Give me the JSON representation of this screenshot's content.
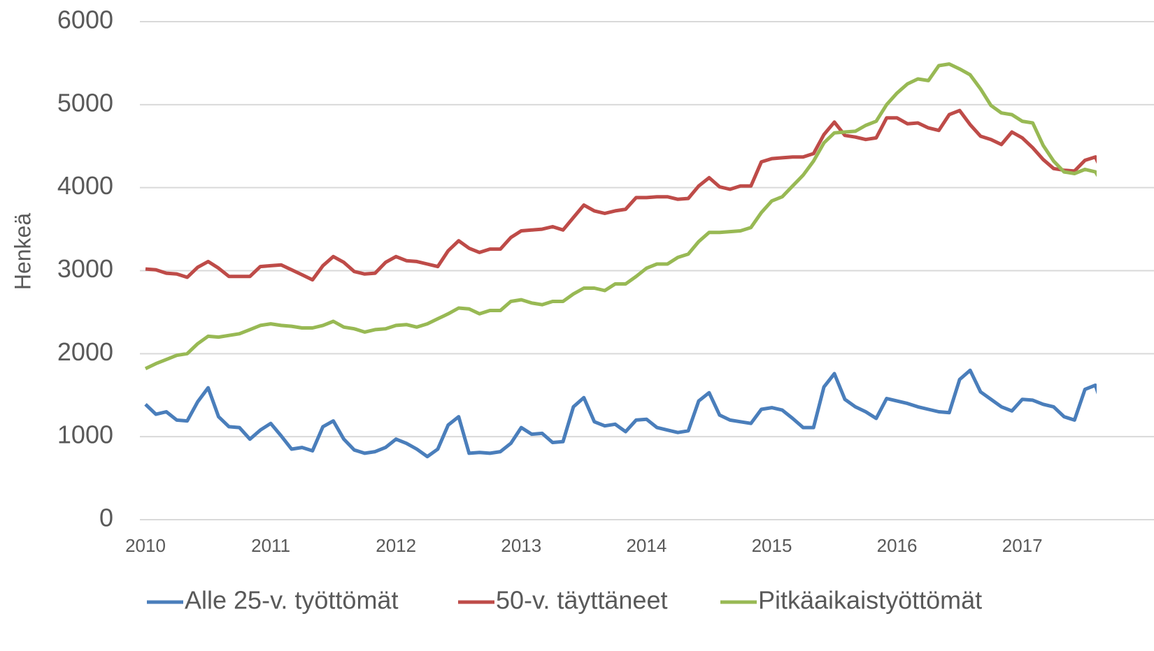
{
  "chart_data": {
    "type": "line",
    "y_label": "Henkeä",
    "categories": [
      "2010",
      null,
      null,
      null,
      null,
      null,
      null,
      null,
      null,
      null,
      null,
      null,
      "2011",
      null,
      null,
      null,
      null,
      null,
      null,
      null,
      null,
      null,
      null,
      null,
      "2012",
      null,
      null,
      null,
      null,
      null,
      null,
      null,
      null,
      null,
      null,
      null,
      "2013",
      null,
      null,
      null,
      null,
      null,
      null,
      null,
      null,
      null,
      null,
      null,
      "2014",
      null,
      null,
      null,
      null,
      null,
      null,
      null,
      null,
      null,
      null,
      null,
      "2015",
      null,
      null,
      null,
      null,
      null,
      null,
      null,
      null,
      null,
      null,
      null,
      "2016",
      null,
      null,
      null,
      null,
      null,
      null,
      null,
      null,
      null,
      null,
      null,
      "2017",
      null,
      null,
      null,
      null,
      null,
      null,
      null,
      null
    ],
    "series": [
      {
        "name": "Alle 25-v. työttömät",
        "color": "#4a7ebb",
        "values": [
          1390,
          1270,
          1300,
          1200,
          1190,
          1420,
          1590,
          1240,
          1120,
          1110,
          970,
          1080,
          1160,
          1010,
          850,
          870,
          830,
          1120,
          1190,
          970,
          840,
          800,
          820,
          870,
          970,
          920,
          850,
          760,
          850,
          1140,
          1240,
          800,
          810,
          800,
          820,
          920,
          1110,
          1030,
          1040,
          930,
          940,
          1360,
          1470,
          1180,
          1130,
          1150,
          1060,
          1200,
          1210,
          1110,
          1080,
          1050,
          1070,
          1430,
          1530,
          1260,
          1200,
          1180,
          1160,
          1330,
          1350,
          1320,
          1220,
          1110,
          1110,
          1600,
          1760,
          1450,
          1360,
          1300,
          1220,
          1460,
          1430,
          1400,
          1360,
          1330,
          1300,
          1290,
          1690,
          1800,
          1540,
          1450,
          1360,
          1310,
          1450,
          1440,
          1390,
          1360,
          1240,
          1200,
          1570,
          1620,
          1250
        ]
      },
      {
        "name": "50-v. täyttäneet",
        "color": "#be4b48",
        "values": [
          3020,
          3010,
          2970,
          2960,
          2920,
          3040,
          3110,
          3030,
          2930,
          2930,
          2930,
          3050,
          3060,
          3070,
          3010,
          2950,
          2890,
          3060,
          3170,
          3100,
          2990,
          2960,
          2970,
          3100,
          3170,
          3120,
          3110,
          3080,
          3050,
          3240,
          3360,
          3270,
          3220,
          3260,
          3260,
          3400,
          3480,
          3490,
          3500,
          3530,
          3490,
          3640,
          3790,
          3720,
          3690,
          3720,
          3740,
          3880,
          3880,
          3890,
          3890,
          3860,
          3870,
          4020,
          4120,
          4010,
          3980,
          4020,
          4020,
          4310,
          4350,
          4360,
          4370,
          4370,
          4410,
          4640,
          4790,
          4630,
          4610,
          4580,
          4600,
          4840,
          4840,
          4770,
          4780,
          4720,
          4690,
          4880,
          4930,
          4760,
          4620,
          4580,
          4520,
          4670,
          4600,
          4480,
          4340,
          4230,
          4210,
          4200,
          4330,
          4370,
          4100
        ]
      },
      {
        "name": "Pitkäaikaistyöttömät",
        "color": "#98b954",
        "values": [
          1820,
          1880,
          1930,
          1980,
          2000,
          2120,
          2210,
          2200,
          2220,
          2240,
          2290,
          2340,
          2360,
          2340,
          2330,
          2310,
          2310,
          2340,
          2390,
          2320,
          2300,
          2260,
          2290,
          2300,
          2340,
          2350,
          2320,
          2360,
          2420,
          2480,
          2550,
          2540,
          2480,
          2520,
          2520,
          2630,
          2650,
          2610,
          2590,
          2630,
          2630,
          2720,
          2790,
          2790,
          2760,
          2840,
          2840,
          2930,
          3030,
          3080,
          3080,
          3160,
          3200,
          3350,
          3460,
          3460,
          3470,
          3480,
          3520,
          3700,
          3840,
          3890,
          4020,
          4150,
          4320,
          4540,
          4660,
          4670,
          4680,
          4750,
          4800,
          5000,
          5140,
          5250,
          5310,
          5290,
          5470,
          5490,
          5430,
          5360,
          5190,
          4990,
          4900,
          4880,
          4800,
          4780,
          4510,
          4320,
          4190,
          4170,
          4220,
          4190,
          4000
        ]
      }
    ],
    "ylim": [
      0,
      6000
    ],
    "yticks": [
      0,
      1000,
      2000,
      3000,
      4000,
      5000,
      6000
    ],
    "grid": true,
    "legend": "bottom"
  }
}
